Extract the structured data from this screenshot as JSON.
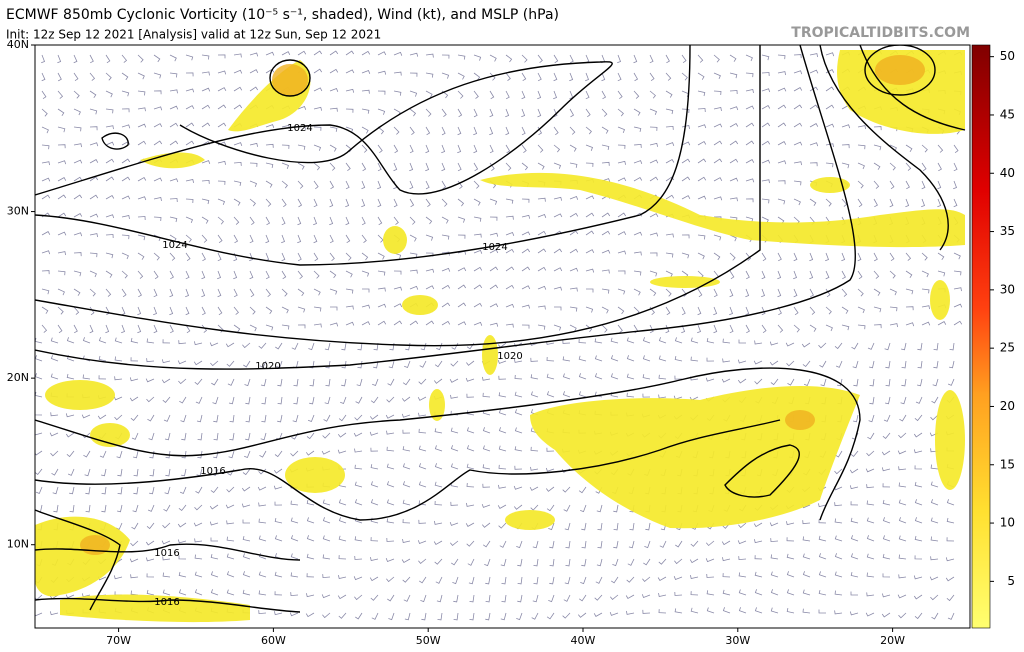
{
  "header": {
    "title": "ECMWF 850mb Cyclonic Vorticity (10⁻⁵ s⁻¹, shaded), Wind (kt), and MSLP (hPa)",
    "subtitle": "Init: 12z Sep 12 2021   [Analysis]   valid at 12z Sun, Sep 12 2021",
    "watermark": "TROPICALTIDBITS.COM"
  },
  "map": {
    "lat_range": [
      5,
      40
    ],
    "lon_range": [
      -75.4,
      -15
    ],
    "lat_ticks": [
      {
        "value": 40,
        "label": "40N"
      },
      {
        "value": 30,
        "label": "30N"
      },
      {
        "value": 20,
        "label": "20N"
      },
      {
        "value": 10,
        "label": "10N"
      }
    ],
    "lon_ticks": [
      {
        "value": -70,
        "label": "70W"
      },
      {
        "value": -60,
        "label": "60W"
      },
      {
        "value": -50,
        "label": "50W"
      },
      {
        "value": -40,
        "label": "40W"
      },
      {
        "value": -30,
        "label": "30W"
      },
      {
        "value": -20,
        "label": "20W"
      }
    ],
    "isobar_labels": [
      "1024",
      "1024",
      "1024",
      "1020",
      "1020",
      "1016",
      "1016",
      "1016"
    ]
  },
  "colorbar": {
    "range": [
      1,
      51
    ],
    "ticks": [
      5,
      10,
      15,
      20,
      25,
      30,
      35,
      40,
      45,
      50
    ]
  }
}
